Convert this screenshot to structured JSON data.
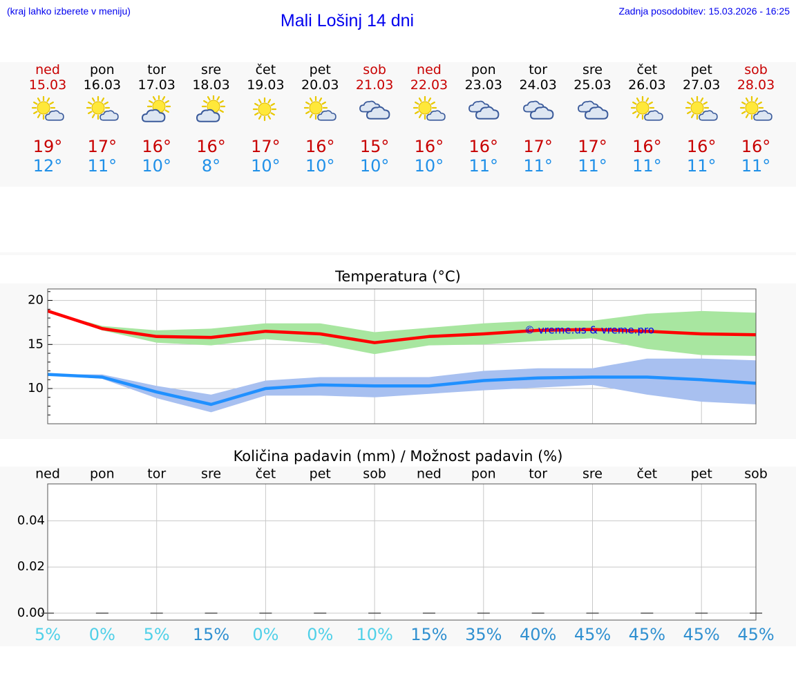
{
  "header": {
    "hint": "(kraj lahko izberete v meniju)",
    "title": "Mali Lošinj 14 dni",
    "updated": "Zadnja posodobitev: 15.03.2026 - 16:25"
  },
  "days": [
    {
      "name": "ned",
      "date": "15.03",
      "icon": "sun-cloud-small",
      "max": "19°",
      "min": "12°",
      "weekend": true
    },
    {
      "name": "pon",
      "date": "16.03",
      "icon": "sun-cloud-small",
      "max": "17°",
      "min": "11°",
      "weekend": false
    },
    {
      "name": "tor",
      "date": "17.03",
      "icon": "sun-cloud-large",
      "max": "16°",
      "min": "10°",
      "weekend": false
    },
    {
      "name": "sre",
      "date": "18.03",
      "icon": "sun-cloud-large",
      "max": "16°",
      "min": "8°",
      "weekend": false
    },
    {
      "name": "čet",
      "date": "19.03",
      "icon": "sun",
      "max": "17°",
      "min": "10°",
      "weekend": false
    },
    {
      "name": "pet",
      "date": "20.03",
      "icon": "sun-cloud-small",
      "max": "16°",
      "min": "10°",
      "weekend": false
    },
    {
      "name": "sob",
      "date": "21.03",
      "icon": "cloudy",
      "max": "15°",
      "min": "10°",
      "weekend": true
    },
    {
      "name": "ned",
      "date": "22.03",
      "icon": "sun-cloud-small",
      "max": "16°",
      "min": "10°",
      "weekend": true
    },
    {
      "name": "pon",
      "date": "23.03",
      "icon": "cloudy",
      "max": "16°",
      "min": "11°",
      "weekend": false
    },
    {
      "name": "tor",
      "date": "24.03",
      "icon": "cloudy",
      "max": "17°",
      "min": "11°",
      "weekend": false
    },
    {
      "name": "sre",
      "date": "25.03",
      "icon": "cloudy",
      "max": "17°",
      "min": "11°",
      "weekend": false
    },
    {
      "name": "čet",
      "date": "26.03",
      "icon": "sun-cloud-small",
      "max": "16°",
      "min": "11°",
      "weekend": false
    },
    {
      "name": "pet",
      "date": "27.03",
      "icon": "sun-cloud-small",
      "max": "16°",
      "min": "11°",
      "weekend": false
    },
    {
      "name": "sob",
      "date": "28.03",
      "icon": "sun-cloud-small",
      "max": "16°",
      "min": "11°",
      "weekend": true
    }
  ],
  "colors": {
    "weekend": "#c80000",
    "weekday": "#000000",
    "max": "#ff0000",
    "min": "#2090ff",
    "maxBand": "#a8e6a0",
    "minBand": "#a8c0f0",
    "probLow": "#50d0e8",
    "probHigh": "#3090d0"
  },
  "chart_data": [
    {
      "type": "line",
      "title": "Temperatura (°C)",
      "xlabel": "",
      "ylabel": "",
      "ylim": [
        6.0,
        21.3
      ],
      "yticks": [
        10,
        15,
        20
      ],
      "x": [
        0,
        1,
        2,
        3,
        4,
        5,
        6,
        7,
        8,
        9,
        10,
        11,
        12,
        13
      ],
      "watermark": "© vreme.us & vreme.pro",
      "series": [
        {
          "name": "max",
          "values": [
            18.8,
            16.8,
            15.9,
            15.8,
            16.5,
            16.2,
            15.2,
            15.9,
            16.2,
            16.6,
            16.7,
            16.5,
            16.2,
            16.1
          ]
        },
        {
          "name": "min",
          "values": [
            11.6,
            11.3,
            9.6,
            8.2,
            10.0,
            10.4,
            10.3,
            10.3,
            10.9,
            11.2,
            11.3,
            11.3,
            11.0,
            10.6
          ]
        }
      ],
      "bands": [
        {
          "name": "max-range",
          "low": [
            18.8,
            16.6,
            15.2,
            14.9,
            15.6,
            15.1,
            13.9,
            14.9,
            15.0,
            15.4,
            15.7,
            14.5,
            13.8,
            13.7
          ],
          "high": [
            18.8,
            17.1,
            16.6,
            16.8,
            17.4,
            17.4,
            16.4,
            16.9,
            17.4,
            17.7,
            17.7,
            18.5,
            18.8,
            18.6
          ]
        },
        {
          "name": "min-range",
          "low": [
            11.6,
            11.1,
            8.9,
            7.3,
            9.2,
            9.2,
            9.0,
            9.4,
            9.8,
            10.1,
            10.4,
            9.3,
            8.5,
            8.2
          ],
          "high": [
            11.6,
            11.6,
            10.3,
            9.3,
            10.9,
            11.3,
            11.3,
            11.3,
            12.0,
            12.3,
            12.3,
            13.4,
            13.4,
            13.2
          ]
        }
      ]
    },
    {
      "type": "bar",
      "title": "Količina padavin (mm) / Možnost padavin (%)",
      "categories": [
        "ned",
        "pon",
        "tor",
        "sre",
        "čet",
        "pet",
        "sob",
        "ned",
        "pon",
        "tor",
        "sre",
        "čet",
        "pet",
        "sob"
      ],
      "values": [
        0,
        0,
        0,
        0,
        0,
        0,
        0,
        0,
        0,
        0,
        0,
        0,
        0,
        0
      ],
      "probability": [
        "5%",
        "0%",
        "5%",
        "15%",
        "0%",
        "0%",
        "10%",
        "15%",
        "35%",
        "40%",
        "45%",
        "45%",
        "45%",
        "45%"
      ],
      "probabilityValues": [
        5,
        0,
        5,
        15,
        0,
        0,
        10,
        15,
        35,
        40,
        45,
        45,
        45,
        45
      ],
      "ylim": [
        -0.003,
        0.056
      ],
      "yticks": [
        "0.00",
        "0.02",
        "0.04"
      ],
      "ytickValues": [
        0,
        0.02,
        0.04
      ]
    }
  ]
}
